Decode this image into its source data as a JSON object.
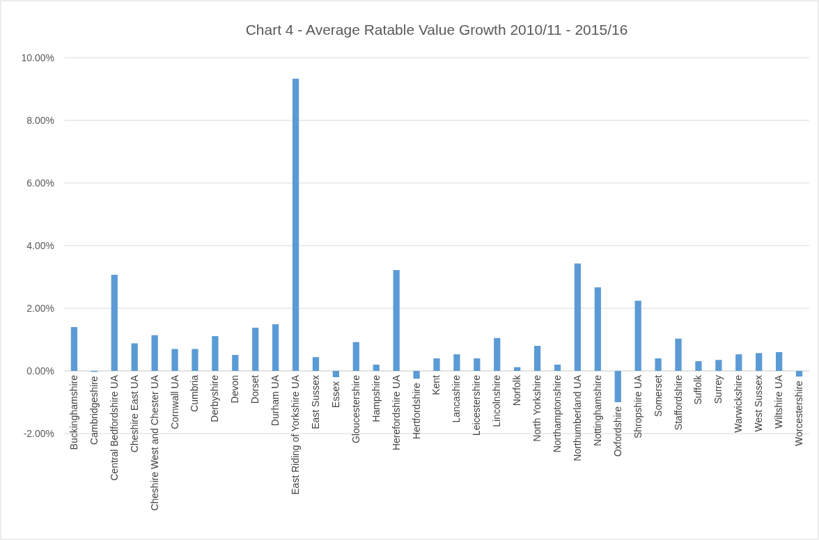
{
  "chart_data": {
    "type": "bar",
    "title": "Chart 4 - Average Ratable Value Growth 2010/11 - 2015/16",
    "categories": [
      "Buckinghamshire",
      "Cambridgeshire",
      "Central Bedfordshire UA",
      "Cheshire East UA",
      "Cheshire West and Chester UA",
      "Cornwall UA",
      "Cumbria",
      "Derbyshire",
      "Devon",
      "Dorset",
      "Durham UA",
      "East Riding of Yorkshire UA",
      "East Sussex",
      "Essex",
      "Gloucestershire",
      "Hampshire",
      "Herefordshire UA",
      "Hertfordshire",
      "Kent",
      "Lancashire",
      "Leicestershire",
      "Lincolnshire",
      "Norfolk",
      "North Yorkshire",
      "Northamptonshire",
      "Northumberland UA",
      "Nottinghamshire",
      "Oxfordshire",
      "Shropshire UA",
      "Somerset",
      "Staffordshire",
      "Suffolk",
      "Surrey",
      "Warwickshire",
      "West Sussex",
      "Wiltshire UA",
      "Worcestershire"
    ],
    "values": [
      1.4,
      -0.03,
      3.07,
      0.88,
      1.14,
      0.7,
      0.7,
      1.11,
      0.51,
      1.38,
      1.49,
      9.33,
      0.44,
      -0.2,
      0.92,
      0.2,
      3.22,
      -0.25,
      0.4,
      0.53,
      0.4,
      1.05,
      0.12,
      0.8,
      0.2,
      3.43,
      2.67,
      -1.0,
      2.24,
      0.4,
      1.03,
      0.31,
      0.35,
      0.53,
      0.57,
      0.6,
      -0.18
    ],
    "color": "#5b9bd5",
    "ylim": [
      -2,
      10
    ],
    "yticks": [
      {
        "value": -2,
        "label": "-2.00%"
      },
      {
        "value": 0,
        "label": "0.00%"
      },
      {
        "value": 2,
        "label": "2.00%"
      },
      {
        "value": 4,
        "label": "4.00%"
      },
      {
        "value": 6,
        "label": "6.00%"
      },
      {
        "value": 8,
        "label": "8.00%"
      },
      {
        "value": 10,
        "label": "10.00%"
      }
    ],
    "grid": "y"
  }
}
